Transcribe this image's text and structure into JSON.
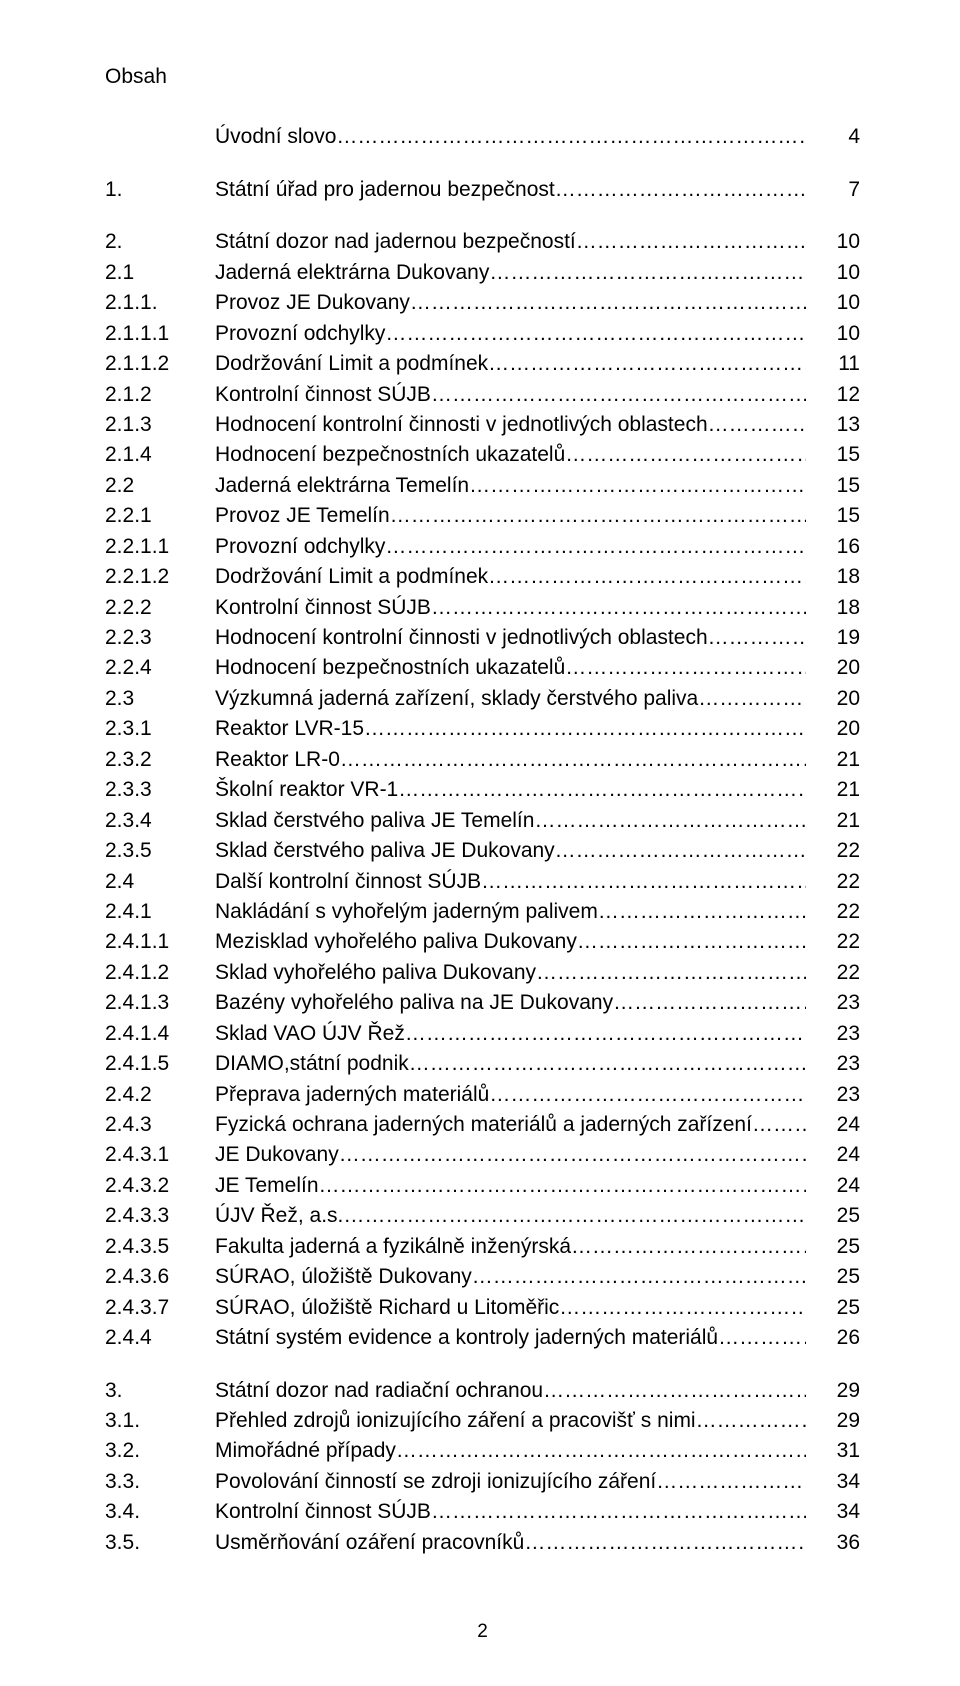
{
  "title": "Obsah",
  "pageNumber": "2",
  "blocks": [
    {
      "type": "line",
      "num": "",
      "label": "Úvodní slovo",
      "page": "4"
    },
    {
      "type": "gap"
    },
    {
      "type": "line",
      "num": "1.",
      "label": "Státní úřad pro jadernou bezpečnost",
      "page": "7"
    },
    {
      "type": "gap"
    },
    {
      "type": "line",
      "num": "2.",
      "label": "Státní dozor nad jadernou bezpečností",
      "page": "10"
    },
    {
      "type": "line",
      "num": "2.1",
      "label": "Jaderná elektrárna Dukovany",
      "page": "10"
    },
    {
      "type": "line",
      "num": "2.1.1.",
      "label": "Provoz JE Dukovany",
      "page": "10"
    },
    {
      "type": "line",
      "num": "2.1.1.1",
      "label": "Provozní odchylky",
      "page": "10"
    },
    {
      "type": "line",
      "num": "2.1.1.2",
      "label": "Dodržování Limit a podmínek",
      "page": "11"
    },
    {
      "type": "line",
      "num": "2.1.2",
      "label": "Kontrolní činnost SÚJB",
      "page": "12"
    },
    {
      "type": "line",
      "num": "2.1.3",
      "label": "Hodnocení kontrolní činnosti v jednotlivých oblastech",
      "page": "13"
    },
    {
      "type": "line",
      "num": "2.1.4",
      "label": "Hodnocení bezpečnostních ukazatelů",
      "page": "15"
    },
    {
      "type": "line",
      "num": "2.2",
      "label": "Jaderná elektrárna Temelín",
      "page": "15"
    },
    {
      "type": "line",
      "num": "2.2.1",
      "label": "Provoz JE Temelín",
      "page": "15"
    },
    {
      "type": "line",
      "num": "2.2.1.1",
      "label": "Provozní odchylky",
      "page": "16"
    },
    {
      "type": "line",
      "num": "2.2.1.2",
      "label": "Dodržování Limit a podmínek",
      "page": "18"
    },
    {
      "type": "line",
      "num": "2.2.2",
      "label": "Kontrolní činnost SÚJB",
      "page": "18"
    },
    {
      "type": "line",
      "num": "2.2.3",
      "label": "Hodnocení kontrolní činnosti v jednotlivých oblastech",
      "page": "19"
    },
    {
      "type": "line",
      "num": "2.2.4",
      "label": "Hodnocení bezpečnostních ukazatelů",
      "page": "20"
    },
    {
      "type": "line",
      "num": "2.3",
      "label": "Výzkumná jaderná zařízení, sklady čerstvého paliva",
      "page": "20"
    },
    {
      "type": "line",
      "num": "2.3.1",
      "label": "Reaktor LVR-15",
      "page": "20"
    },
    {
      "type": "line",
      "num": "2.3.2",
      "label": "Reaktor LR-0",
      "page": "21"
    },
    {
      "type": "line",
      "num": "2.3.3",
      "label": "Školní reaktor VR-1",
      "page": "21"
    },
    {
      "type": "line",
      "num": "2.3.4",
      "label": "Sklad čerstvého paliva JE Temelín",
      "page": "21"
    },
    {
      "type": "line",
      "num": "2.3.5",
      "label": "Sklad čerstvého paliva JE Dukovany",
      "page": "22"
    },
    {
      "type": "line",
      "num": "2.4",
      "label": "Další kontrolní činnost SÚJB",
      "page": "22"
    },
    {
      "type": "line",
      "num": "2.4.1",
      "label": "Nakládání s vyhořelým jaderným palivem",
      "page": "22"
    },
    {
      "type": "line",
      "num": "2.4.1.1",
      "label": "Mezisklad vyhořelého paliva Dukovany",
      "page": "22"
    },
    {
      "type": "line",
      "num": "2.4.1.2",
      "label": "Sklad vyhořelého paliva Dukovany",
      "page": "22"
    },
    {
      "type": "line",
      "num": "2.4.1.3",
      "label": "Bazény vyhořelého paliva na JE Dukovany",
      "page": "23"
    },
    {
      "type": "line",
      "num": "2.4.1.4",
      "label": "Sklad VAO ÚJV Řež",
      "page": "23"
    },
    {
      "type": "line",
      "num": "2.4.1.5",
      "label": "DIAMO,státní podnik",
      "page": "23"
    },
    {
      "type": "line",
      "num": "2.4.2",
      "label": "Přeprava jaderných materiálů",
      "page": "23"
    },
    {
      "type": "line",
      "num": "2.4.3",
      "label": "Fyzická ochrana jaderných materiálů a jaderných zařízení",
      "page": "24"
    },
    {
      "type": "line",
      "num": "2.4.3.1",
      "label": "JE Dukovany",
      "page": "24"
    },
    {
      "type": "line",
      "num": "2.4.3.2",
      "label": "JE Temelín",
      "page": "24"
    },
    {
      "type": "line",
      "num": "2.4.3.3",
      "label": "ÚJV Řež, a.s.",
      "page": "25"
    },
    {
      "type": "line",
      "num": "2.4.3.5",
      "label": "Fakulta jaderná a fyzikálně inženýrská",
      "page": "25"
    },
    {
      "type": "line",
      "num": "2.4.3.6",
      "label": "SÚRAO, úložiště Dukovany",
      "page": "25"
    },
    {
      "type": "line",
      "num": "2.4.3.7",
      "label": "SÚRAO, úložiště Richard u Litoměřic",
      "page": "25"
    },
    {
      "type": "line",
      "num": "2.4.4",
      "label": "Státní systém evidence a kontroly jaderných materiálů",
      "page": "26"
    },
    {
      "type": "gap"
    },
    {
      "type": "line",
      "num": "3.",
      "label": "Státní dozor nad radiační ochranou",
      "page": "29"
    },
    {
      "type": "line",
      "num": "3.1.",
      "label": "Přehled zdrojů ionizujícího záření a pracovišť s nimi",
      "page": "29"
    },
    {
      "type": "line",
      "num": "3.2.",
      "label": "Mimořádné případy",
      "page": "31"
    },
    {
      "type": "line",
      "num": "3.3.",
      "label": "Povolování činností se zdroji ionizujícího záření",
      "page": "34"
    },
    {
      "type": "line",
      "num": "3.4.",
      "label": "Kontrolní činnost SÚJB",
      "page": "34"
    },
    {
      "type": "line",
      "num": "3.5.",
      "label": "Usměrňování ozáření pracovníků",
      "page": "36"
    }
  ]
}
